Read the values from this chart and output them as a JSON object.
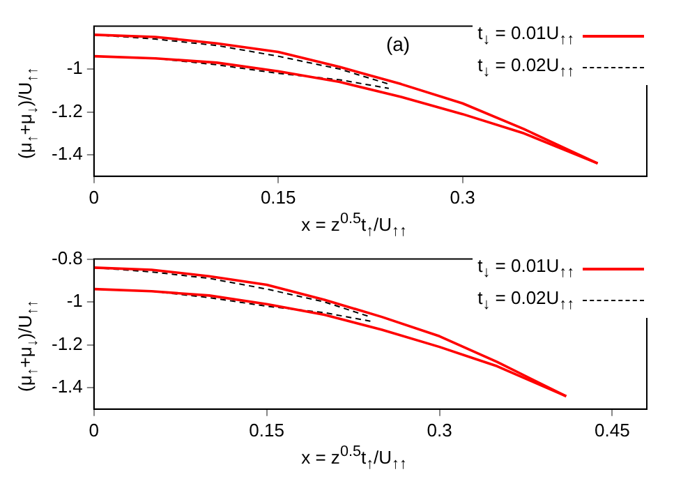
{
  "chart_data": [
    {
      "type": "line",
      "xlabel": "x = z$^{0.5}$t$_{↑}$/U$_{↑↑}$",
      "ylabel": "(μ$_{↑}$+μ$_{↓}$)/U$_{↑↑}$",
      "annotations": [
        "(a)"
      ],
      "xlim": [
        0,
        0.45
      ],
      "xticks": [
        0,
        0.15,
        0.3
      ],
      "ylim": [
        -1.5,
        -0.8
      ],
      "yticks": [
        -1,
        -1.2,
        -1.4
      ],
      "grid": false,
      "legend": "top right",
      "series": [
        {
          "name": "t$_{↓}$ = 0.01U$_{↑↑}$",
          "color": "#ff0000",
          "line_style": "solid",
          "x": [
            0,
            0.05,
            0.1,
            0.15,
            0.2,
            0.25,
            0.3,
            0.35,
            0.38,
            0.41
          ],
          "values": [
            -0.84,
            -0.85,
            -0.88,
            -0.92,
            -0.99,
            -1.07,
            -1.16,
            -1.28,
            -1.36,
            -1.44
          ]
        },
        {
          "color": "#ff0000",
          "line_style": "solid",
          "x": [
            0,
            0.05,
            0.1,
            0.15,
            0.2,
            0.25,
            0.3,
            0.35,
            0.38,
            0.41
          ],
          "values": [
            -0.94,
            -0.95,
            -0.97,
            -1.01,
            -1.06,
            -1.13,
            -1.21,
            -1.3,
            -1.37,
            -1.44
          ]
        },
        {
          "name": "t$_{↓}$ = 0.02U$_{↑↑}$",
          "color": "#000000",
          "line_style": "dashed",
          "x": [
            0,
            0.05,
            0.1,
            0.15,
            0.2,
            0.24
          ],
          "values": [
            -0.84,
            -0.86,
            -0.89,
            -0.94,
            -1.0,
            -1.07
          ]
        },
        {
          "color": "#000000",
          "line_style": "dashed",
          "x": [
            0,
            0.05,
            0.1,
            0.15,
            0.2,
            0.24
          ],
          "values": [
            -0.94,
            -0.95,
            -0.98,
            -1.02,
            -1.05,
            -1.09
          ]
        }
      ]
    },
    {
      "type": "line",
      "xlabel": "x = z$^{0.5}$t$_{↑}$/U$_{↑↑}$",
      "ylabel": "(μ$_{↑}$+μ$_{↓}$)/U$_{↑↑}$",
      "xlim": [
        0,
        0.48
      ],
      "xticks": [
        0,
        0.15,
        0.3,
        0.45
      ],
      "ylim": [
        -1.5,
        -0.8
      ],
      "yticks": [
        -0.8,
        -1,
        -1.2,
        -1.4
      ],
      "grid": false,
      "legend": "top right",
      "series": [
        {
          "name": "t$_{↓}$ = 0.01U$_{↑↑}$",
          "color": "#ff0000",
          "line_style": "solid",
          "x": [
            0,
            0.05,
            0.1,
            0.15,
            0.2,
            0.25,
            0.3,
            0.35,
            0.38,
            0.41
          ],
          "values": [
            -0.84,
            -0.85,
            -0.88,
            -0.92,
            -0.99,
            -1.07,
            -1.16,
            -1.28,
            -1.36,
            -1.44
          ]
        },
        {
          "color": "#ff0000",
          "line_style": "solid",
          "x": [
            0,
            0.05,
            0.1,
            0.15,
            0.2,
            0.25,
            0.3,
            0.35,
            0.38,
            0.41
          ],
          "values": [
            -0.94,
            -0.95,
            -0.97,
            -1.01,
            -1.06,
            -1.13,
            -1.21,
            -1.3,
            -1.37,
            -1.44
          ]
        },
        {
          "name": "t$_{↓}$ = 0.02U$_{↑↑}$",
          "color": "#000000",
          "line_style": "dashed",
          "x": [
            0,
            0.05,
            0.1,
            0.15,
            0.2,
            0.24
          ],
          "values": [
            -0.84,
            -0.86,
            -0.89,
            -0.94,
            -1.0,
            -1.07
          ]
        },
        {
          "color": "#000000",
          "line_style": "dashed",
          "x": [
            0,
            0.05,
            0.1,
            0.15,
            0.2,
            0.24
          ],
          "values": [
            -0.94,
            -0.95,
            -0.98,
            -1.02,
            -1.05,
            -1.09
          ]
        }
      ]
    }
  ]
}
